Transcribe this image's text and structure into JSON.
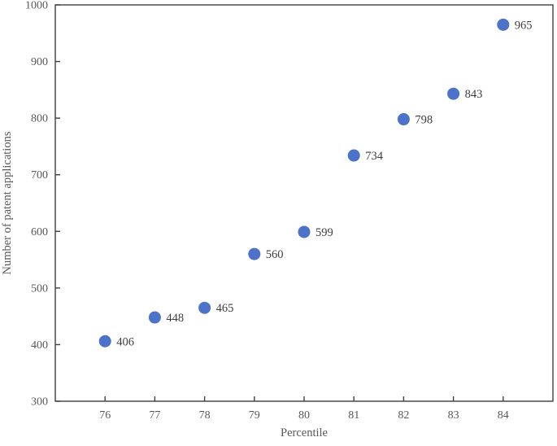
{
  "chart_data": {
    "type": "scatter",
    "title": "",
    "xlabel": "Percentile",
    "ylabel": "Number of patent applications",
    "x": [
      76,
      77,
      78,
      79,
      80,
      81,
      82,
      83,
      84
    ],
    "y": [
      406,
      448,
      465,
      560,
      599,
      734,
      798,
      843,
      965
    ],
    "point_labels": [
      "406",
      "448",
      "465",
      "560",
      "599",
      "734",
      "798",
      "843",
      "965"
    ],
    "x_ticks": [
      76,
      77,
      78,
      79,
      80,
      81,
      82,
      83,
      84
    ],
    "y_ticks": [
      300,
      400,
      500,
      600,
      700,
      800,
      900,
      1000
    ],
    "xlim": [
      75,
      85
    ],
    "ylim": [
      300,
      1000
    ],
    "grid": false,
    "legend": "none",
    "marker_color": "#4d72c9",
    "axis_color": "#3f3f3f",
    "tick_label_color": "#595959",
    "data_label_color": "#3d3d3d"
  }
}
